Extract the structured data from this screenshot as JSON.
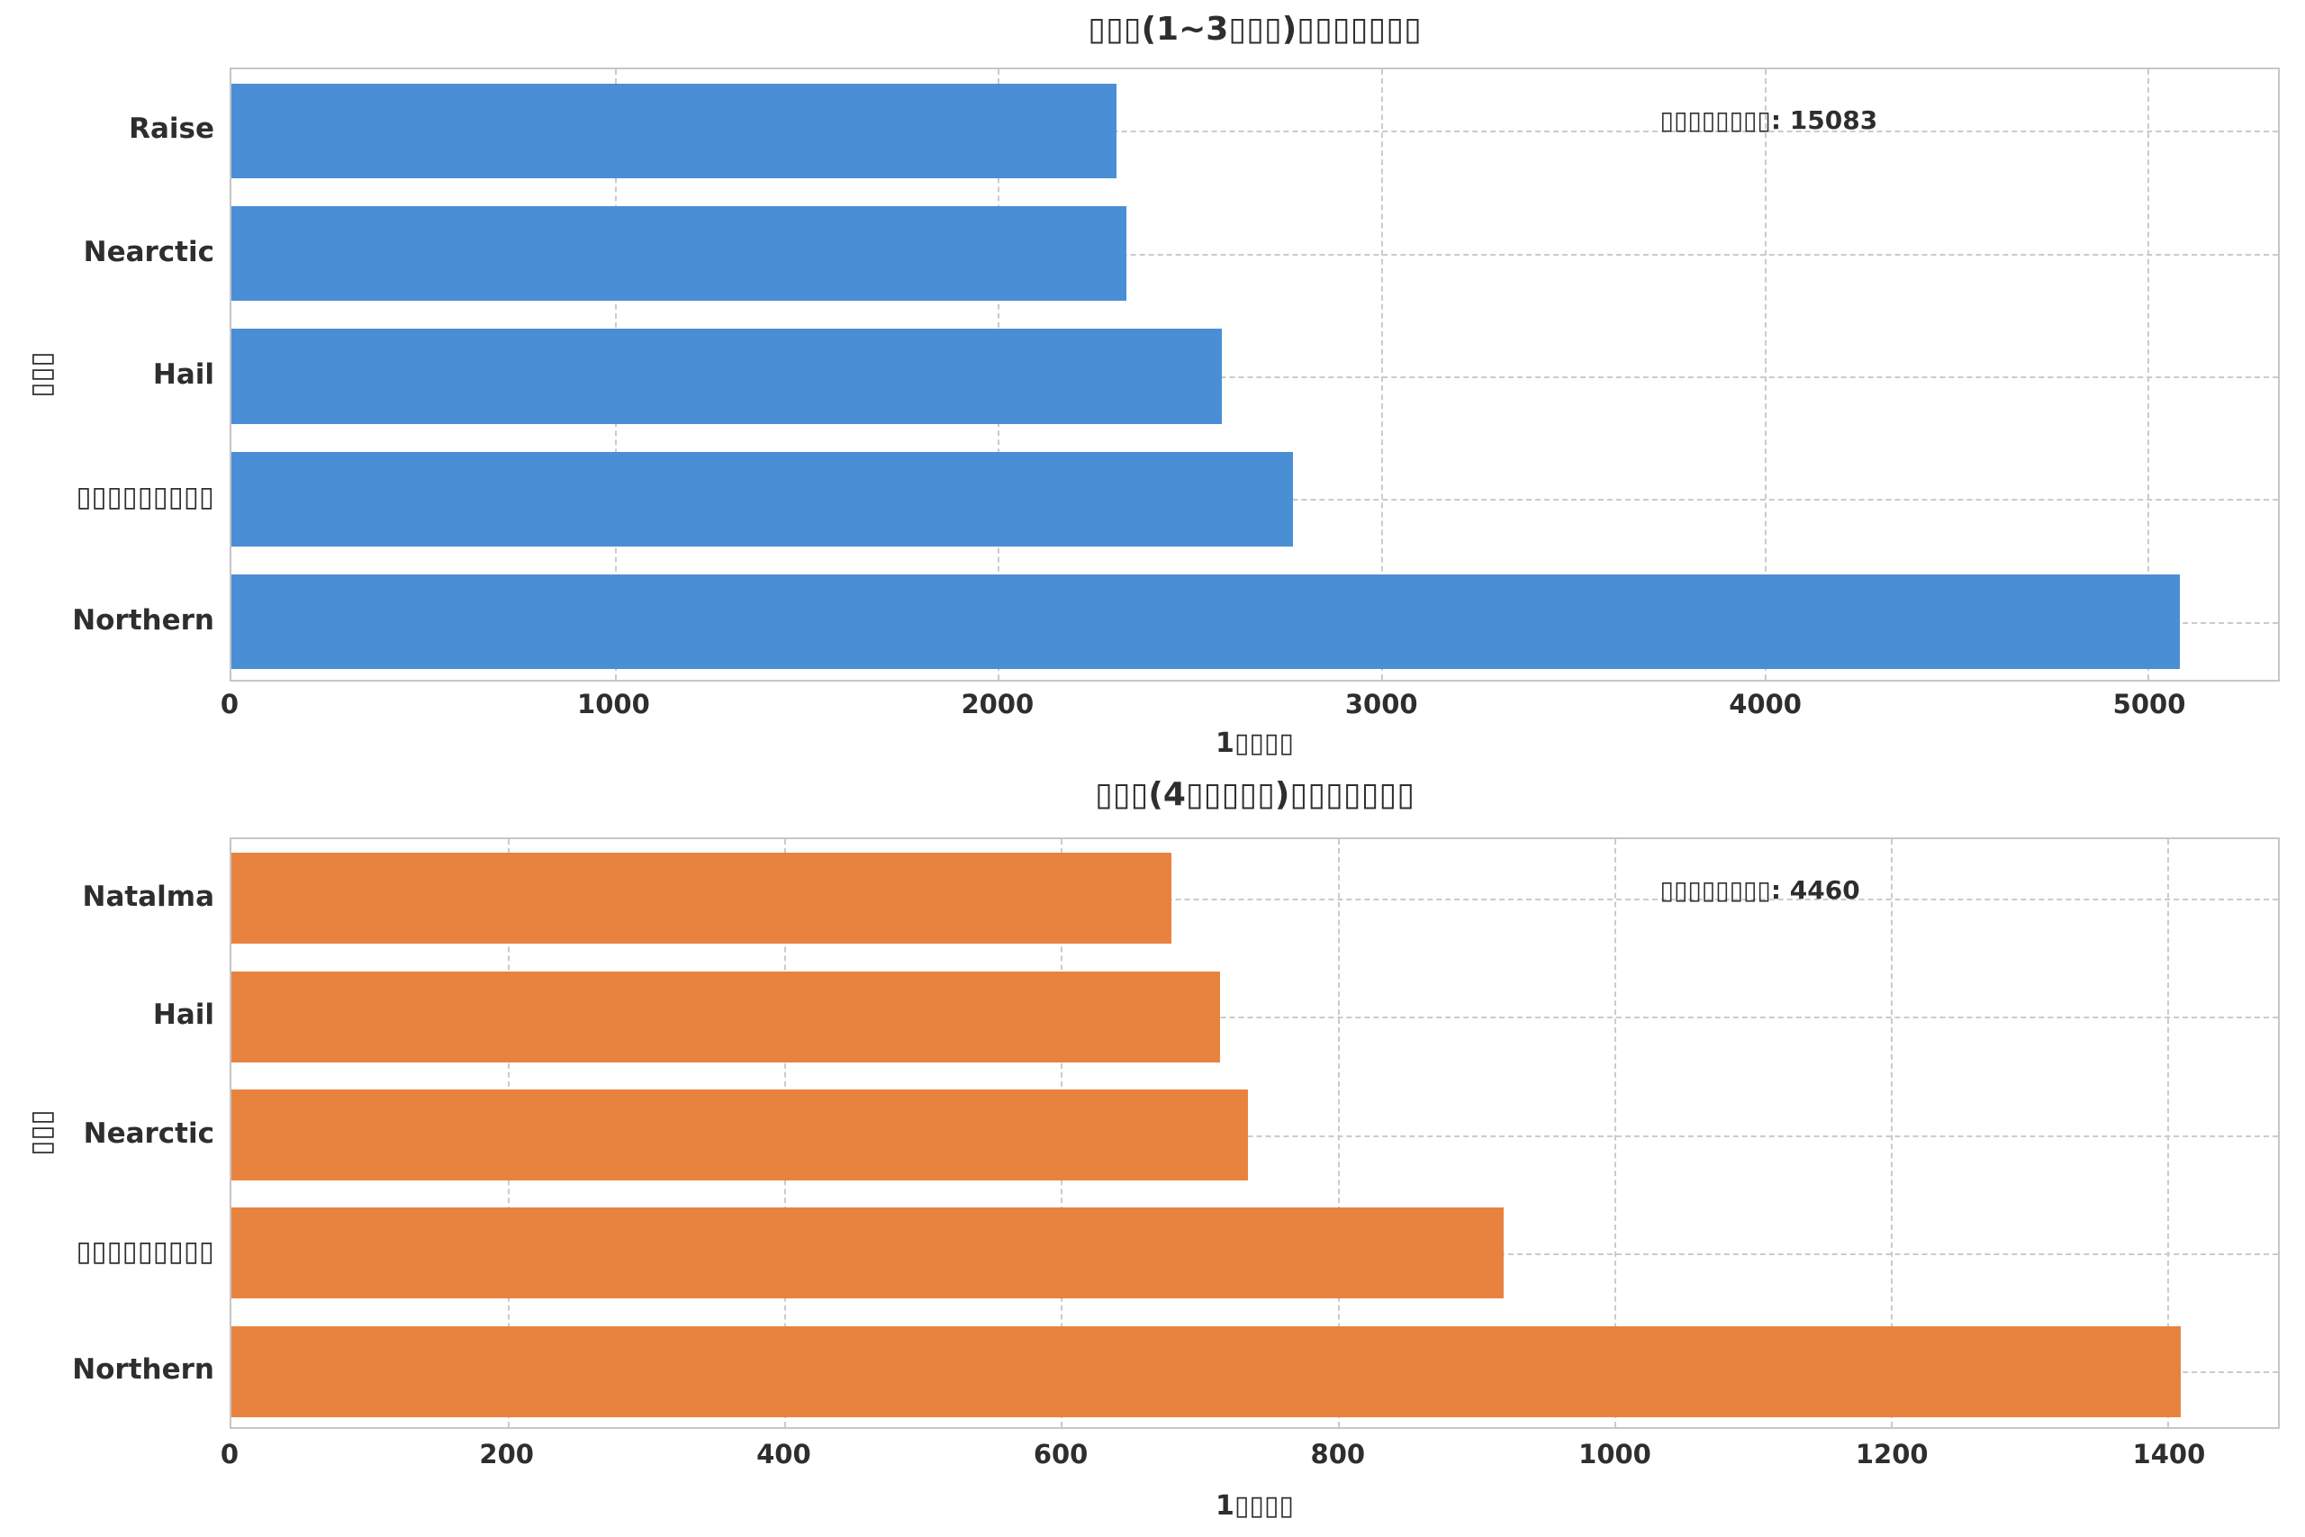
{
  "figure_background": "#ffffff",
  "text_color": "#2e2e2e",
  "spine_color": "#c6c6c6",
  "grid_color": "#cbcbcb",
  "chart_data": [
    {
      "type": "bar",
      "orientation": "horizontal",
      "title": "▯▯▯(1~3▯▯▯)▯▯▯▯▯▯▯",
      "xlabel": "1▯▯▯▯",
      "ylabel": "▯▯▯",
      "annotation": "▯▯▯▯▯▯▯▯: 15083",
      "annotation_total": 15083,
      "categories": [
        "Raise",
        "Nearctic",
        "Hail",
        "▯▯▯▯▯▯▯▯▯",
        "Northern"
      ],
      "values": [
        2310,
        2335,
        2585,
        2770,
        5083
      ],
      "xticks": [
        0,
        1000,
        2000,
        3000,
        4000,
        5000
      ],
      "xlim": [
        0,
        5340
      ],
      "bar_color": "#4a8ed6",
      "grid": true,
      "grid_style": "dashed",
      "legend": null
    },
    {
      "type": "bar",
      "orientation": "horizontal",
      "title": "▯▯▯(4▯▯▯▯▯)▯▯▯▯▯▯▯",
      "xlabel": "1▯▯▯▯",
      "ylabel": "▯▯▯",
      "annotation": "▯▯▯▯▯▯▯▯: 4460",
      "annotation_total": 4460,
      "categories": [
        "Natalma",
        "Hail",
        "Nearctic",
        "▯▯▯▯▯▯▯▯▯",
        "Northern"
      ],
      "values": [
        680,
        715,
        735,
        920,
        1410
      ],
      "xticks": [
        0,
        200,
        400,
        600,
        800,
        1000,
        1200,
        1400
      ],
      "xlim": [
        0,
        1480
      ],
      "bar_color": "#e8833f",
      "grid": true,
      "grid_style": "dashed",
      "legend": null
    }
  ]
}
